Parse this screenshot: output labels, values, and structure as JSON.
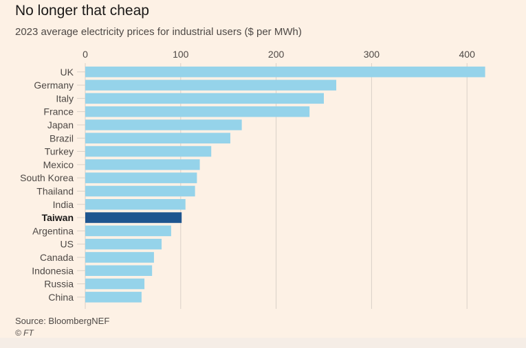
{
  "title": "No longer that cheap",
  "subtitle": "2023 average electricity prices for industrial users ($ per MWh)",
  "source": "Source: BloombergNEF",
  "copyright": "© FT",
  "colors": {
    "background": "#fdf1e5",
    "bar": "#95d3ea",
    "highlight_bar": "#1e558f",
    "gridline": "#d9d0c7",
    "text": "#4d4845"
  },
  "chart_data": {
    "type": "bar",
    "orientation": "horizontal",
    "title": "No longer that cheap",
    "subtitle": "2023 average electricity prices for industrial users ($ per MWh)",
    "categories": [
      "UK",
      "Germany",
      "Italy",
      "France",
      "Japan",
      "Brazil",
      "Turkey",
      "Mexico",
      "South Korea",
      "Thailand",
      "India",
      "Taiwan",
      "Argentina",
      "US",
      "Canada",
      "Indonesia",
      "Russia",
      "China"
    ],
    "values": [
      419,
      263,
      250,
      235,
      164,
      152,
      132,
      120,
      117,
      115,
      105,
      101,
      90,
      80,
      72,
      70,
      62,
      59
    ],
    "highlight": "Taiwan",
    "xlim": [
      0,
      420
    ],
    "xticks": [
      0,
      100,
      200,
      300,
      400
    ],
    "xaxis_position": "top",
    "grid": true,
    "xlabel": "",
    "ylabel": ""
  }
}
